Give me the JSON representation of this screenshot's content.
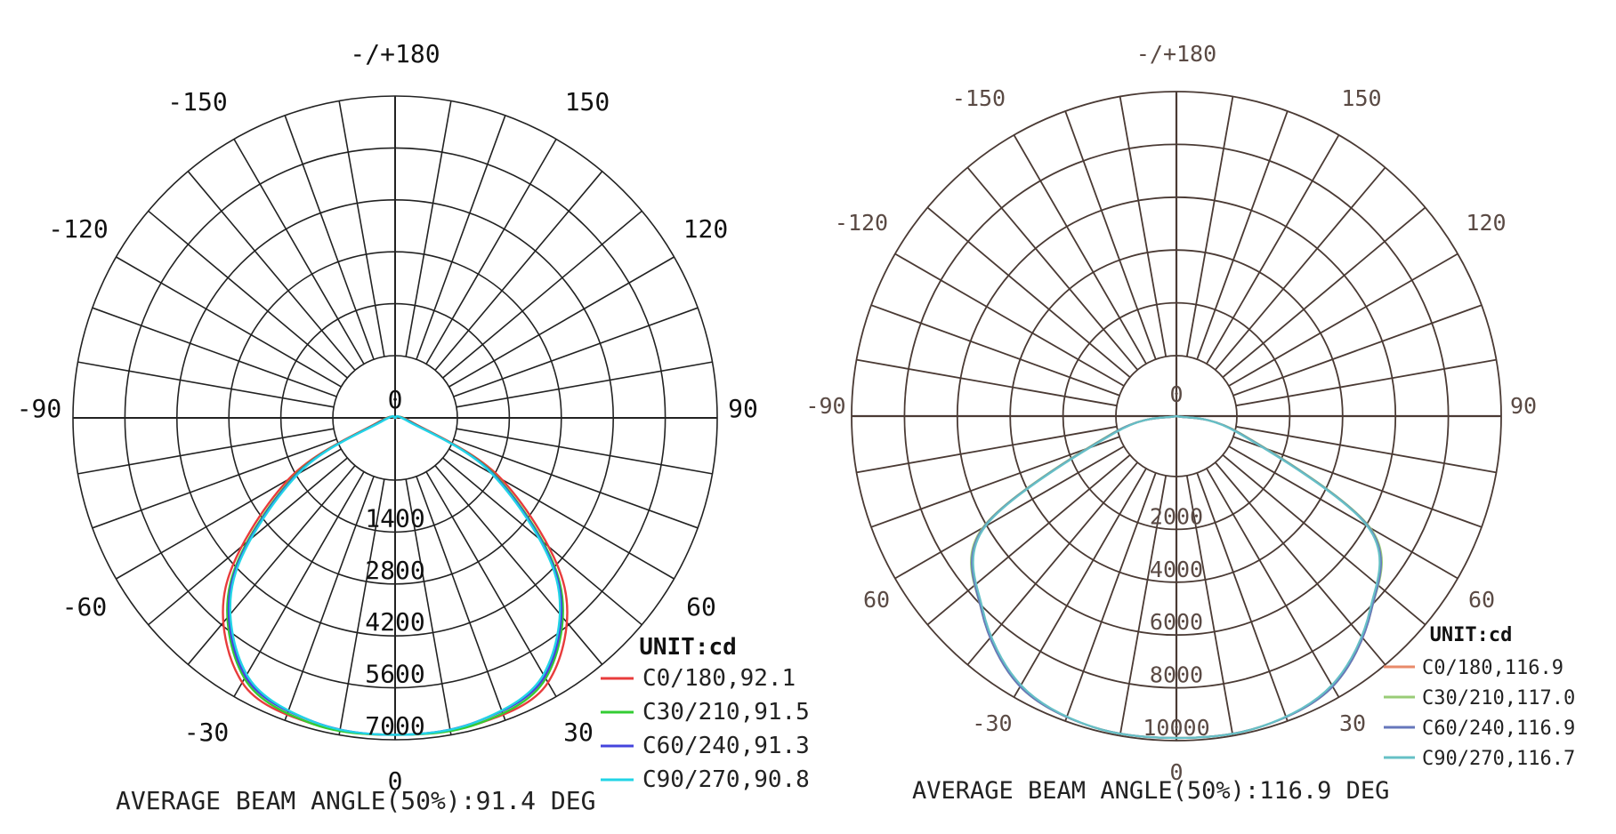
{
  "chart_data": [
    {
      "type": "polar",
      "unit_label": "UNIT:cd",
      "angle_labels": [
        "-/+180",
        "150",
        "120",
        "90",
        "60",
        "30",
        "0",
        "-30",
        "-60",
        "-90",
        "-120",
        "-150"
      ],
      "center_label": "0",
      "radial_ticks": [
        "1400",
        "2800",
        "4200",
        "5600",
        "7000"
      ],
      "radial_max": 7000,
      "series": [
        {
          "name": "C0/180,92.1",
          "color": "#e83c3c",
          "angles": [
            0,
            15,
            30,
            45,
            60,
            75,
            90
          ],
          "values": [
            6950,
            6950,
            6700,
            5250,
            2700,
            400,
            0
          ]
        },
        {
          "name": "C30/210,91.5",
          "color": "#33cc33",
          "angles": [
            0,
            15,
            30,
            45,
            60,
            75,
            90
          ],
          "values": [
            6950,
            6950,
            6600,
            5100,
            2550,
            350,
            0
          ]
        },
        {
          "name": "C60/240,91.3",
          "color": "#4444dd",
          "angles": [
            0,
            15,
            30,
            45,
            60,
            75,
            90
          ],
          "values": [
            6950,
            6900,
            6550,
            5050,
            2500,
            320,
            0
          ]
        },
        {
          "name": "C90/270,90.8",
          "color": "#22d4e6",
          "angles": [
            0,
            15,
            30,
            45,
            60,
            75,
            90
          ],
          "values": [
            6950,
            6900,
            6500,
            5000,
            2450,
            300,
            0
          ]
        }
      ],
      "caption": "AVERAGE BEAM ANGLE(50%):91.4 DEG"
    },
    {
      "type": "polar",
      "unit_label": "UNIT:cd",
      "angle_labels": [
        "-/+180",
        "150",
        "120",
        "90",
        "60",
        "30",
        "0",
        "-30",
        "60",
        "-90",
        "-120",
        "-150"
      ],
      "center_label": "0",
      "radial_ticks": [
        "2000",
        "4000",
        "6000",
        "8000",
        "10000"
      ],
      "radial_max": 10000,
      "series": [
        {
          "name": "C0/180,116.9",
          "color": "#e88a6a",
          "angles": [
            0,
            15,
            30,
            45,
            60,
            75,
            90
          ],
          "values": [
            10000,
            10000,
            9700,
            8550,
            6900,
            2000,
            0
          ]
        },
        {
          "name": "C30/210,117.0",
          "color": "#99cc77",
          "angles": [
            0,
            15,
            30,
            45,
            60,
            75,
            90
          ],
          "values": [
            10000,
            10000,
            9700,
            8550,
            6950,
            2050,
            0
          ]
        },
        {
          "name": "C60/240,116.9",
          "color": "#6677bb",
          "angles": [
            0,
            15,
            30,
            45,
            60,
            75,
            90
          ],
          "values": [
            10000,
            10000,
            9700,
            8550,
            6900,
            2000,
            0
          ]
        },
        {
          "name": "C90/270,116.7",
          "color": "#66c0c6",
          "angles": [
            0,
            15,
            30,
            45,
            60,
            75,
            90
          ],
          "values": [
            10000,
            10000,
            9650,
            8500,
            6850,
            1950,
            0
          ]
        }
      ],
      "caption": "AVERAGE BEAM ANGLE(50%):116.9 DEG"
    }
  ]
}
